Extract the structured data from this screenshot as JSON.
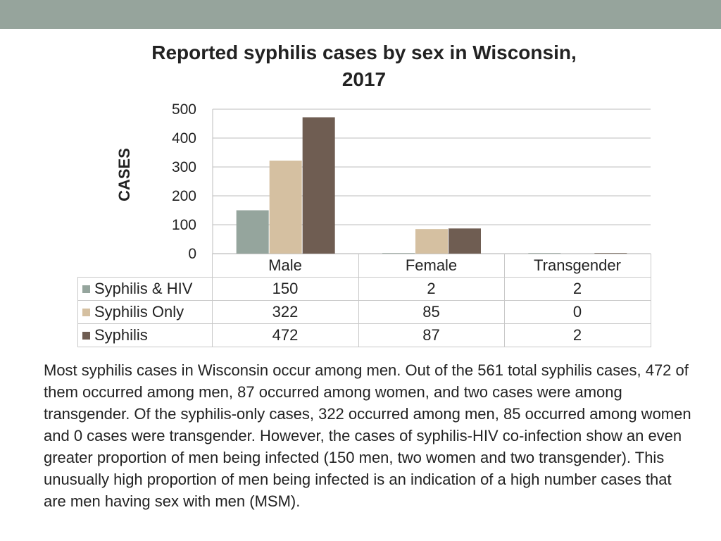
{
  "title": "Reported syphilis cases by sex in Wisconsin, 2017",
  "chart_data": {
    "type": "bar",
    "title": "Reported syphilis cases by sex in Wisconsin, 2017",
    "xlabel": "",
    "ylabel": "CASES",
    "categories": [
      "Male",
      "Female",
      "Transgender"
    ],
    "series": [
      {
        "name": "Syphilis & HIV",
        "values": [
          150,
          2,
          2
        ],
        "color": "#95a59d"
      },
      {
        "name": "Syphilis Only",
        "values": [
          322,
          85,
          0
        ],
        "color": "#d5c0a1"
      },
      {
        "name": "Syphilis",
        "values": [
          472,
          87,
          2
        ],
        "color": "#6f5d52"
      }
    ],
    "ylim": [
      0,
      500
    ],
    "yticks": [
      "0",
      "100",
      "200",
      "300",
      "400",
      "500"
    ],
    "grid": true,
    "legend": "data table below chart"
  },
  "table": {
    "header": [
      "Male",
      "Female",
      "Transgender"
    ],
    "rows": [
      {
        "label": "Syphilis & HIV",
        "cells": [
          "150",
          "2",
          "2"
        ]
      },
      {
        "label": "Syphilis Only",
        "cells": [
          "322",
          "85",
          "0"
        ]
      },
      {
        "label": "Syphilis",
        "cells": [
          "472",
          "87",
          "2"
        ]
      }
    ]
  },
  "description": "Most syphilis cases in Wisconsin occur among men. Out of the 561 total syphilis cases, 472 of them occurred among men, 87 occurred among women, and two cases were among transgender. Of the syphilis-only cases, 322 occurred among men, 85 occurred among women and 0 cases were transgender. However, the cases of syphilis-HIV co-infection show an even greater proportion of men being infected (150 men, two women and two transgender). This unusually high proportion of men being infected is an indication of a high number cases that are men having sex with men (MSM)."
}
